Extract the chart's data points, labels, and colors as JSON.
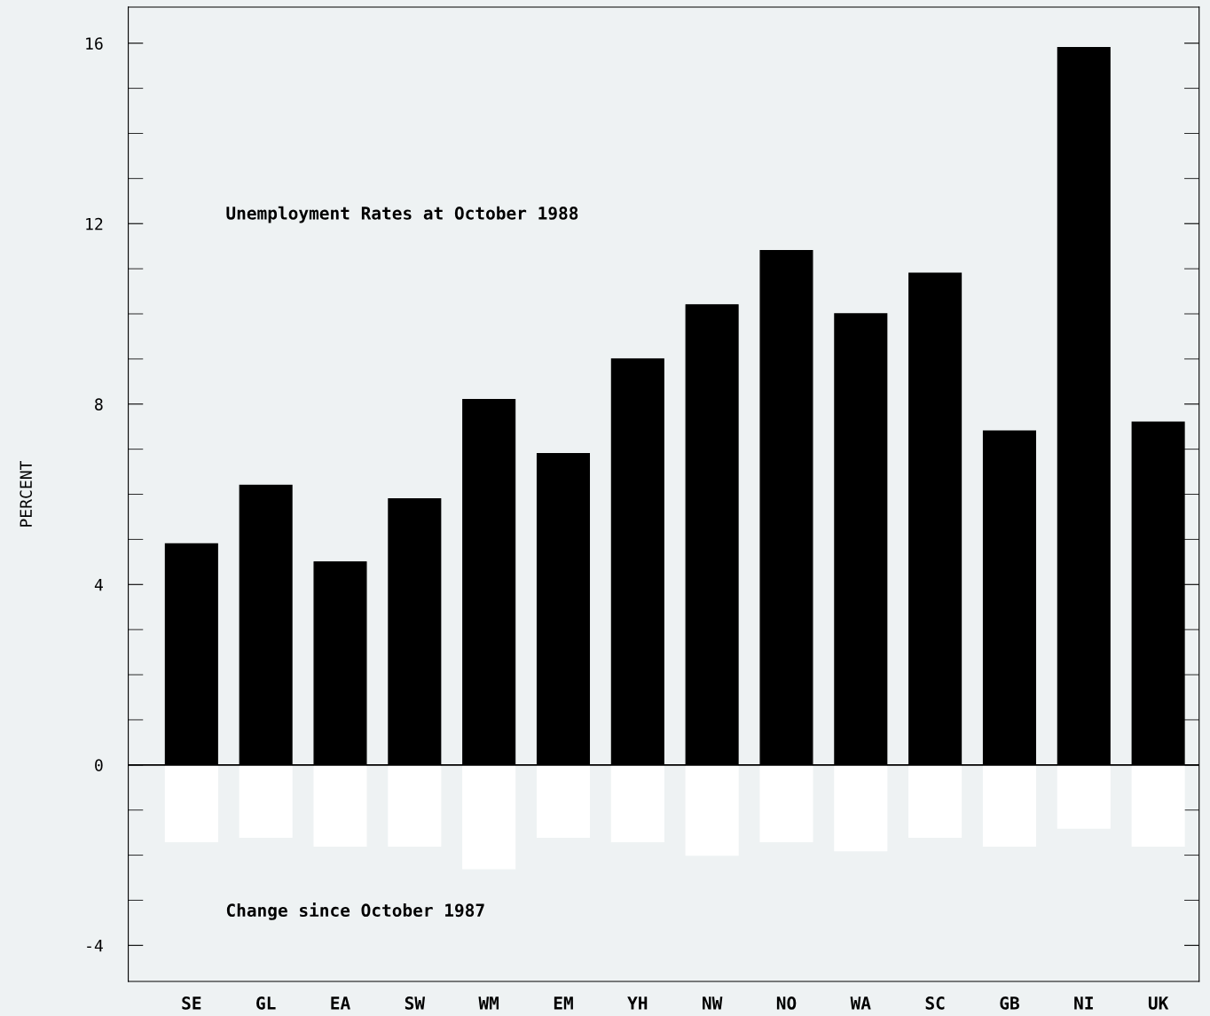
{
  "chart_data": {
    "type": "bar",
    "ylabel": "PERCENT",
    "annotations": [
      "Unemployment Rates at October 1988",
      "Change since October 1987"
    ],
    "stacked": true,
    "categories": [
      "SE",
      "GL",
      "EA",
      "SW",
      "WM",
      "EM",
      "YH",
      "NW",
      "NO",
      "WA",
      "SC",
      "GB",
      "NI",
      "UK"
    ],
    "series": [
      {
        "color": "#000000",
        "values": [
          4.9,
          6.2,
          4.5,
          5.9,
          8.1,
          6.9,
          9.0,
          10.2,
          11.4,
          10.0,
          10.9,
          7.4,
          15.9,
          7.6
        ]
      },
      {
        "color": "#ffffff",
        "values": [
          -1.7,
          -1.6,
          -1.8,
          -1.8,
          -2.3,
          -1.6,
          -1.7,
          -2.0,
          -1.7,
          -1.9,
          -1.6,
          -1.8,
          -1.4,
          -1.8
        ]
      }
    ],
    "ylim": [
      -4.8,
      16.8
    ],
    "yticks": [
      -4,
      0,
      4,
      8,
      12,
      16
    ],
    "ref_lines": [
      {
        "axis": "y",
        "value": 0,
        "color": "#000000"
      }
    ],
    "grid": false,
    "legend": false
  }
}
